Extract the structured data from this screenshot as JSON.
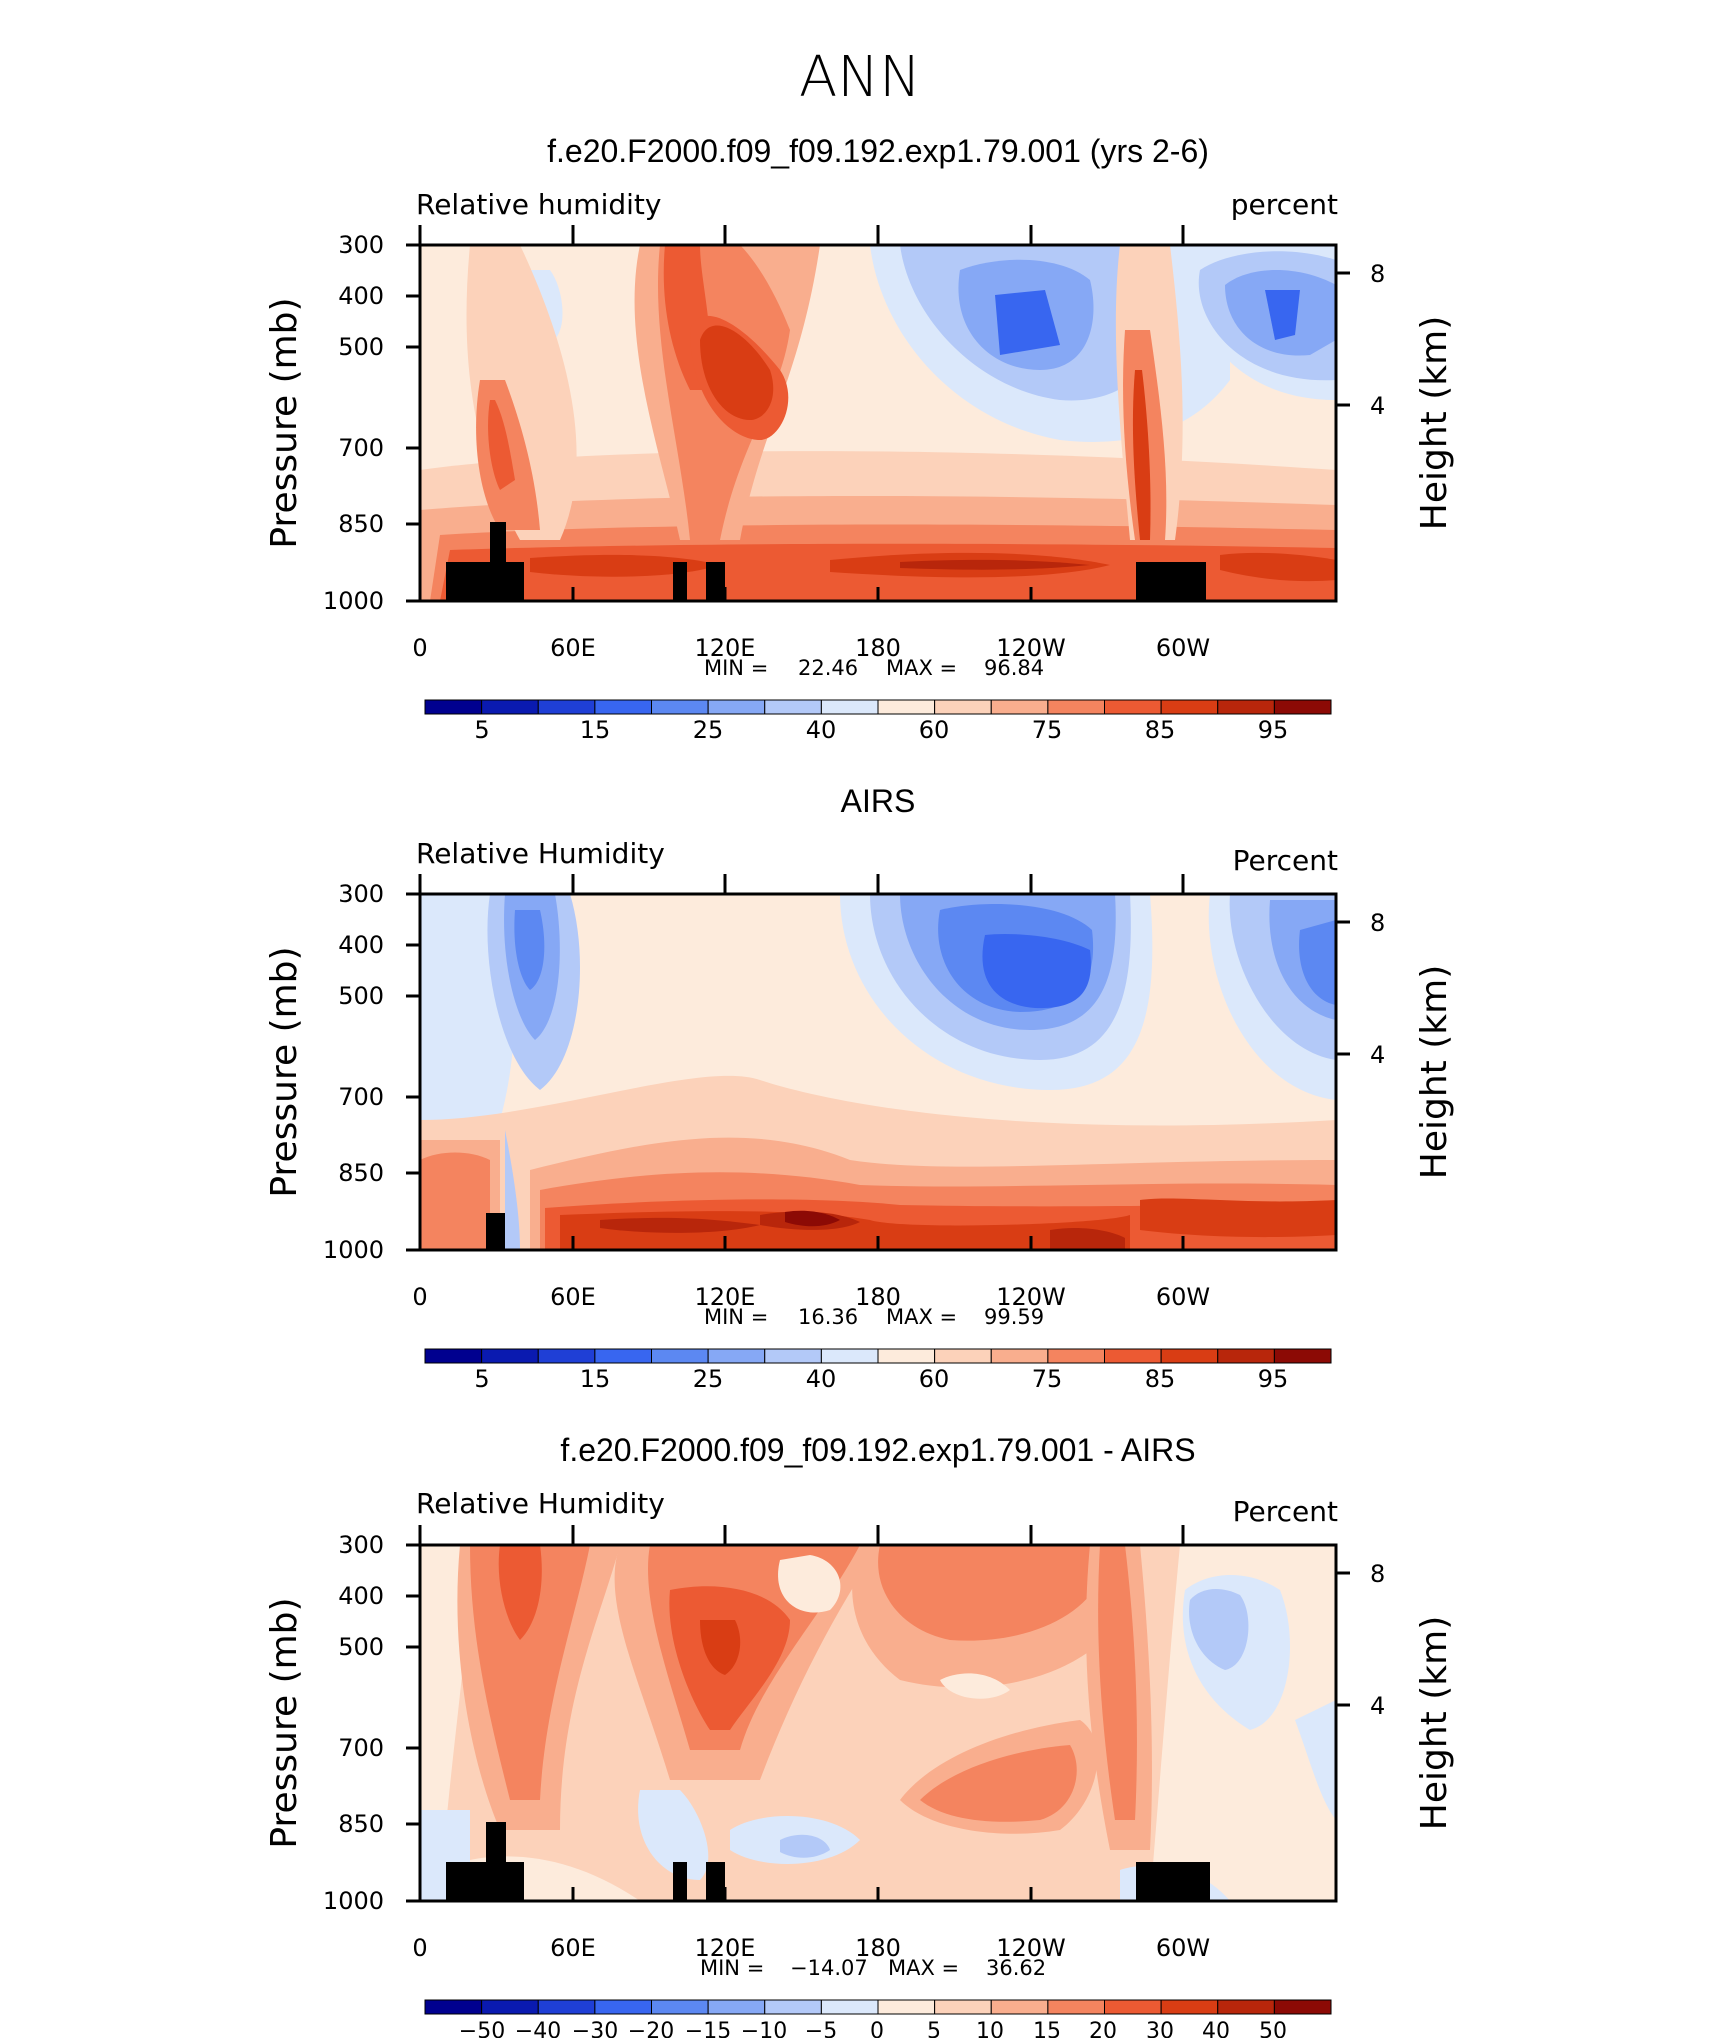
{
  "page_title": "ANN",
  "chart_data": [
    {
      "type": "heatmap",
      "title": "f.e20.F2000.f09_f09.192.exp1.79.001 (yrs 2-6)",
      "left_label": "Relative  humidity",
      "right_label": "percent",
      "xlabel": "",
      "ylabel": "Pressure  (mb)",
      "ylabel_right": "Height  (km)",
      "x_ticks": [
        "0",
        "60E",
        "120E",
        "180",
        "120W",
        "60W"
      ],
      "y_ticks": [
        "300",
        "400",
        "500",
        "700",
        "850",
        "1000"
      ],
      "height_ticks": [
        "8",
        "4"
      ],
      "min_label": "MIN =",
      "min_value": "22.46",
      "max_label": "MAX =",
      "max_value": "96.84",
      "colorbar_labels": [
        "5",
        "15",
        "25",
        "40",
        "60",
        "75",
        "85",
        "95"
      ]
    },
    {
      "type": "heatmap",
      "title": "AIRS",
      "left_label": "Relative  Humidity",
      "right_label": "Percent",
      "xlabel": "",
      "ylabel": "Pressure  (mb)",
      "ylabel_right": "Height  (km)",
      "x_ticks": [
        "0",
        "60E",
        "120E",
        "180",
        "120W",
        "60W"
      ],
      "y_ticks": [
        "300",
        "400",
        "500",
        "700",
        "850",
        "1000"
      ],
      "height_ticks": [
        "8",
        "4"
      ],
      "min_label": "MIN =",
      "min_value": "16.36",
      "max_label": "MAX =",
      "max_value": "99.59",
      "colorbar_labels": [
        "5",
        "15",
        "25",
        "40",
        "60",
        "75",
        "85",
        "95"
      ]
    },
    {
      "type": "heatmap",
      "title": "f.e20.F2000.f09_f09.192.exp1.79.001 - AIRS",
      "left_label": "Relative  Humidity",
      "right_label": "Percent",
      "xlabel": "",
      "ylabel": "Pressure  (mb)",
      "ylabel_right": "Height  (km)",
      "x_ticks": [
        "0",
        "60E",
        "120E",
        "180",
        "120W",
        "60W"
      ],
      "y_ticks": [
        "300",
        "400",
        "500",
        "700",
        "850",
        "1000"
      ],
      "height_ticks": [
        "8",
        "4"
      ],
      "min_label": "MIN =",
      "min_value": "−14.07",
      "max_label": "MAX =",
      "max_value": "36.62",
      "colorbar_labels": [
        "−50",
        "−40",
        "−30",
        "−20",
        "−15",
        "−10",
        "−5",
        "0",
        "5",
        "10",
        "15",
        "20",
        "30",
        "40",
        "50"
      ]
    }
  ],
  "colorbar_colors": [
    "#00008f",
    "#0a1ab0",
    "#1f3fd6",
    "#3866f0",
    "#5c88f2",
    "#86a8f5",
    "#b3c9f8",
    "#dbe8fb",
    "#fdebdc",
    "#fcd2ba",
    "#f9ae8e",
    "#f4845f",
    "#ec5a33",
    "#d93d14",
    "#b8260b",
    "#8c0a05"
  ]
}
